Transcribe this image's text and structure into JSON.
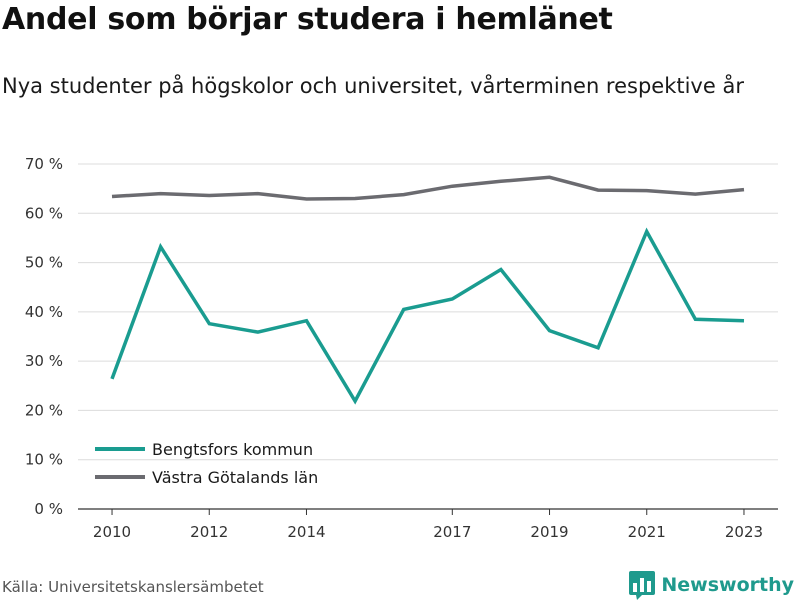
{
  "header": {
    "title": "Andel som börjar studera i hemlänet",
    "subtitle": "Nya studenter på högskolor och universitet, vårterminen respektive år"
  },
  "footer": {
    "source": "Källa: Universitetskanslersämbetet",
    "brand": "Newsworthy"
  },
  "colors": {
    "series_teal": "#1a9c90",
    "series_gray": "#6b6b70",
    "brand": "#1f9a8d",
    "grid": "#dcdcdc"
  },
  "chart_data": {
    "type": "line",
    "title": "Andel som börjar studera i hemlänet",
    "subtitle": "Nya studenter på högskolor och universitet, vårterminen respektive år",
    "xlabel": "",
    "ylabel": "",
    "x": [
      2010,
      2011,
      2012,
      2013,
      2014,
      2015,
      2016,
      2017,
      2018,
      2019,
      2020,
      2021,
      2022,
      2023
    ],
    "x_tick_labels": [
      "2010",
      "2012",
      "2014",
      "2017",
      "2019",
      "2021",
      "2023"
    ],
    "x_tick_values": [
      2010,
      2012,
      2014,
      2017,
      2019,
      2021,
      2023
    ],
    "ylim": [
      0,
      70
    ],
    "y_ticks": [
      0,
      10,
      20,
      30,
      40,
      50,
      60,
      70
    ],
    "y_tick_labels": [
      "0 %",
      "10 %",
      "20 %",
      "30 %",
      "40 %",
      "50 %",
      "60 %",
      "70 %"
    ],
    "grid": true,
    "legend_position": "bottom-left",
    "series": [
      {
        "name": "Bengtsfors kommun",
        "color": "#1a9c90",
        "values": [
          26.4,
          53.2,
          37.6,
          35.9,
          38.2,
          21.9,
          40.5,
          42.6,
          48.6,
          36.2,
          32.7,
          56.3,
          38.5,
          38.2
        ]
      },
      {
        "name": "Västra Götalands län",
        "color": "#6b6b70",
        "values": [
          63.4,
          64.0,
          63.6,
          64.0,
          62.9,
          63.0,
          63.8,
          65.5,
          66.5,
          67.3,
          64.7,
          64.6,
          63.9,
          64.8
        ]
      }
    ]
  }
}
